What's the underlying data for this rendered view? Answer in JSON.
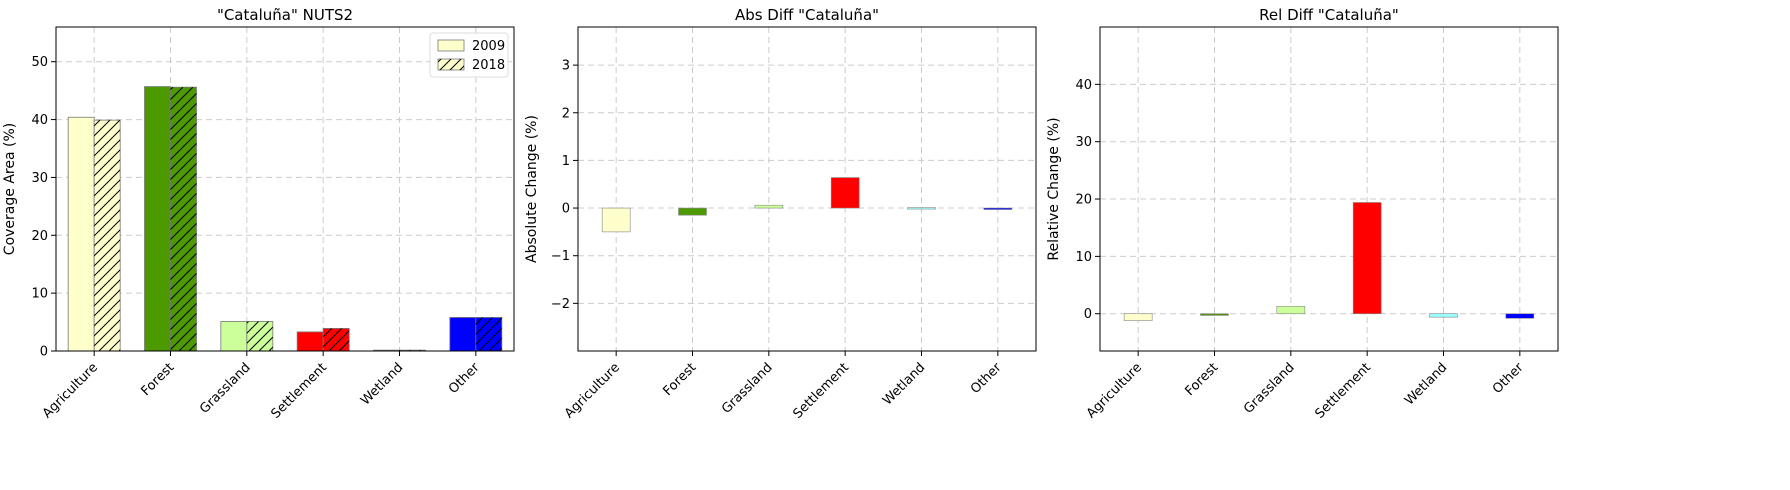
{
  "colors": {
    "Agriculture": "#ffffcc",
    "Forest": "#4d9900",
    "Grassland": "#ccff99",
    "Settlement": "#ff0000",
    "Wetland": "#99ffff",
    "Other": "#0000ff"
  },
  "chart_data": [
    {
      "type": "bar",
      "title": "\"Cataluña\" NUTS2",
      "ylabel": "Coverage Area (%)",
      "xlabel": "",
      "categories": [
        "Agriculture",
        "Forest",
        "Grassland",
        "Settlement",
        "Wetland",
        "Other"
      ],
      "series": [
        {
          "name": "2009",
          "hatch": "none",
          "values": [
            40.4,
            45.7,
            5.1,
            3.3,
            0.15,
            5.8
          ]
        },
        {
          "name": "2018",
          "hatch": "diagonal",
          "values": [
            39.9,
            45.6,
            5.1,
            3.9,
            0.15,
            5.8
          ]
        }
      ],
      "ylim": [
        0,
        56
      ],
      "yticks": [
        0,
        10,
        20,
        30,
        40,
        50
      ],
      "grid": true,
      "legend": "top-right"
    },
    {
      "type": "bar",
      "title": "Abs Diff \"Cataluña\"",
      "ylabel": "Absolute Change (%)",
      "xlabel": "",
      "categories": [
        "Agriculture",
        "Forest",
        "Grassland",
        "Settlement",
        "Wetland",
        "Other"
      ],
      "values": [
        -0.5,
        -0.15,
        0.06,
        0.64,
        0.01,
        -0.03
      ],
      "ylim": [
        -3,
        3.8
      ],
      "yticks": [
        -2,
        -1,
        0,
        1,
        2,
        3
      ],
      "grid": true
    },
    {
      "type": "bar",
      "title": "Rel Diff \"Cataluña\"",
      "ylabel": "Relative Change (%)",
      "xlabel": "",
      "categories": [
        "Agriculture",
        "Forest",
        "Grassland",
        "Settlement",
        "Wetland",
        "Other"
      ],
      "values": [
        -1.2,
        -0.3,
        1.3,
        19.4,
        -0.6,
        -0.8
      ],
      "ylim": [
        -6.5,
        50
      ],
      "yticks": [
        0,
        10,
        20,
        30,
        40
      ],
      "grid": true
    }
  ]
}
